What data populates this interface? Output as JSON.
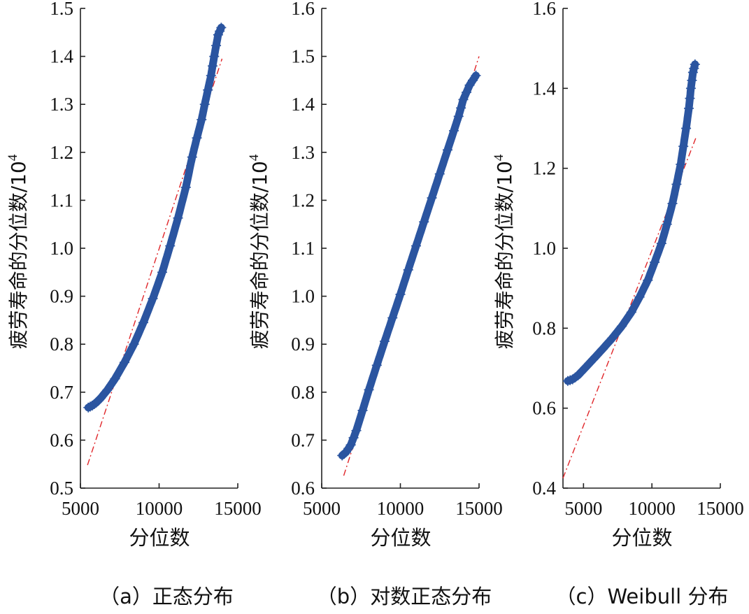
{
  "chart_data": [
    {
      "type": "scatter",
      "title": "",
      "caption": "（a）正态分布",
      "xlabel": "分位数",
      "ylabel": "疲劳寿命的分位数/10",
      "ylabel_exponent": "4",
      "xlim": [
        5000,
        15000
      ],
      "ylim": [
        0.5,
        1.5
      ],
      "xticks": [
        5000,
        10000,
        15000
      ],
      "xtick_labels": [
        "5000",
        "10000",
        "15000"
      ],
      "yticks": [
        0.5,
        0.6,
        0.7,
        0.8,
        0.9,
        1.0,
        1.1,
        1.2,
        1.3,
        1.4,
        1.5
      ],
      "ytick_labels": [
        "0.5",
        "0.6",
        "0.7",
        "0.8",
        "0.9",
        "1.0",
        "1.1",
        "1.2",
        "1.3",
        "1.4",
        "1.5"
      ],
      "marker_color": "#2b55a0",
      "reference_color": "#e0262a",
      "reference_line": {
        "x": [
          5450,
          14000
        ],
        "y": [
          0.548,
          1.395
        ]
      },
      "series": [
        {
          "name": "data quantiles",
          "marker": "+",
          "x": [
            5500,
            5750,
            6000,
            6300,
            6700,
            7200,
            7800,
            8400,
            9000,
            9600,
            10200,
            10700,
            11200,
            11700,
            12100,
            12400,
            12700,
            12900,
            13100,
            13300,
            13500,
            13750,
            13950
          ],
          "y": [
            0.668,
            0.672,
            0.678,
            0.688,
            0.704,
            0.728,
            0.762,
            0.8,
            0.845,
            0.895,
            0.95,
            1.005,
            1.063,
            1.127,
            1.19,
            1.23,
            1.268,
            1.3,
            1.33,
            1.36,
            1.4,
            1.445,
            1.46
          ]
        }
      ]
    },
    {
      "type": "scatter",
      "title": "",
      "caption": "（b）对数正态分布",
      "xlabel": "分位数",
      "ylabel": "疲劳寿命的分位数/10",
      "ylabel_exponent": "4",
      "xlim": [
        5000,
        15000
      ],
      "ylim": [
        0.6,
        1.6
      ],
      "xticks": [
        5000,
        10000,
        15000
      ],
      "xtick_labels": [
        "5000",
        "10000",
        "15000"
      ],
      "yticks": [
        0.6,
        0.7,
        0.8,
        0.9,
        1.0,
        1.1,
        1.2,
        1.3,
        1.4,
        1.5,
        1.6
      ],
      "ytick_labels": [
        "0.6",
        "0.7",
        "0.8",
        "0.9",
        "1.0",
        "1.1",
        "1.2",
        "1.3",
        "1.4",
        "1.5",
        "1.6"
      ],
      "marker_color": "#2b55a0",
      "reference_color": "#e0262a",
      "reference_line": {
        "x": [
          6400,
          15000
        ],
        "y": [
          0.626,
          1.5
        ]
      },
      "series": [
        {
          "name": "data quantiles",
          "marker": "+",
          "x": [
            6300,
            6550,
            6850,
            7200,
            7600,
            8000,
            8500,
            9000,
            9500,
            10000,
            10500,
            11000,
            11500,
            12000,
            12500,
            13000,
            13400,
            13700,
            14000,
            14400,
            14800
          ],
          "y": [
            0.668,
            0.675,
            0.69,
            0.72,
            0.762,
            0.805,
            0.856,
            0.906,
            0.955,
            1.004,
            1.055,
            1.105,
            1.155,
            1.205,
            1.255,
            1.305,
            1.345,
            1.375,
            1.41,
            1.44,
            1.46
          ]
        }
      ]
    },
    {
      "type": "scatter",
      "title": "",
      "caption": "（c）Weibull 分布",
      "xlabel": "分位数",
      "ylabel": "疲劳寿命的分位数/10",
      "ylabel_exponent": "4",
      "xlim": [
        3500,
        15000
      ],
      "ylim": [
        0.4,
        1.6
      ],
      "xticks": [
        5000,
        10000,
        15000
      ],
      "xtick_labels": [
        "5000",
        "10000",
        "15000"
      ],
      "yticks": [
        0.4,
        0.6,
        0.8,
        1.0,
        1.2,
        1.4,
        1.6
      ],
      "ytick_labels": [
        "0.4",
        "0.6",
        "0.8",
        "1.0",
        "1.2",
        "1.4",
        "1.6"
      ],
      "marker_color": "#2b55a0",
      "reference_color": "#e0262a",
      "reference_line": {
        "x": [
          3500,
          13200
        ],
        "y": [
          0.425,
          1.275
        ]
      },
      "series": [
        {
          "name": "data quantiles",
          "marker": "+",
          "x": [
            3850,
            4200,
            4600,
            5100,
            5700,
            6400,
            7100,
            7800,
            8500,
            9100,
            9700,
            10200,
            10700,
            11100,
            11500,
            11800,
            12100,
            12300,
            12500,
            12700,
            12850,
            13000,
            13150
          ],
          "y": [
            0.668,
            0.672,
            0.682,
            0.7,
            0.722,
            0.748,
            0.775,
            0.805,
            0.84,
            0.878,
            0.92,
            0.965,
            1.012,
            1.06,
            1.112,
            1.16,
            1.21,
            1.255,
            1.3,
            1.35,
            1.4,
            1.44,
            1.46
          ]
        }
      ]
    }
  ]
}
